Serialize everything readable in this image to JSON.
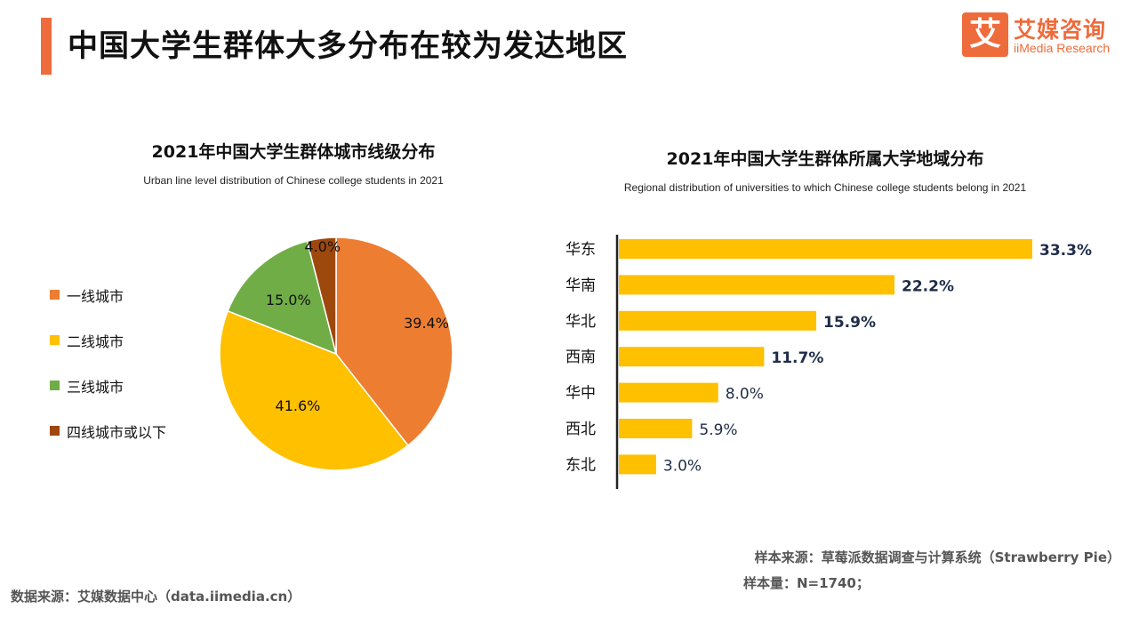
{
  "page": {
    "title": "中国大学生群体大多分布在较为发达地区"
  },
  "logo": {
    "mark": "艾",
    "name_cn": "艾媒咨询",
    "name_en": "iiMedia Research"
  },
  "colors": {
    "accent": "#ee6b3b",
    "tier1": "#ed7d31",
    "tier2": "#ffc000",
    "tier3": "#70ad47",
    "tier4": "#9e480e",
    "bar": "#ffc000",
    "bar_label": "#1f2d4a"
  },
  "pie_chart": {
    "title": "2021年中国大学生群体城市线级分布",
    "subtitle": "Urban line level distribution of Chinese college students in 2021"
  },
  "bar_chart": {
    "title": "2021年中国大学生群体所属大学地域分布",
    "subtitle": "Regional distribution of universities to which Chinese college students belong in 2021"
  },
  "chart_data": [
    {
      "type": "pie",
      "title": "2021年中国大学生群体城市线级分布",
      "subtitle": "Urban line level distribution of Chinese college students in 2021",
      "categories": [
        "一线城市",
        "二线城市",
        "三线城市",
        "四线城市或以下"
      ],
      "values": [
        39.4,
        41.6,
        15.0,
        4.0
      ],
      "labels": [
        "39.4%",
        "41.6%",
        "15.0%",
        "4.0%"
      ],
      "colors": [
        "#ed7d31",
        "#ffc000",
        "#70ad47",
        "#9e480e"
      ],
      "legend_position": "left"
    },
    {
      "type": "bar",
      "orientation": "horizontal",
      "title": "2021年中国大学生群体所属大学地域分布",
      "subtitle": "Regional distribution of universities to which Chinese college students belong in 2021",
      "categories": [
        "华东",
        "华南",
        "华北",
        "西南",
        "华中",
        "西北",
        "东北"
      ],
      "values": [
        33.3,
        22.2,
        15.9,
        11.7,
        8.0,
        5.9,
        3.0
      ],
      "labels": [
        "33.3%",
        "22.2%",
        "15.9%",
        "11.7%",
        "8.0%",
        "5.9%",
        "3.0%"
      ],
      "bold_labels": [
        true,
        true,
        true,
        true,
        false,
        false,
        false
      ],
      "xlim": [
        0,
        33.3
      ],
      "color": "#ffc000"
    }
  ],
  "footer": {
    "sample_source": "样本来源：草莓派数据调查与计算系统（Strawberry Pie）",
    "sample_size": "样本量：N=1740；",
    "data_source": "数据来源：艾媒数据中心（data.iimedia.cn）"
  }
}
